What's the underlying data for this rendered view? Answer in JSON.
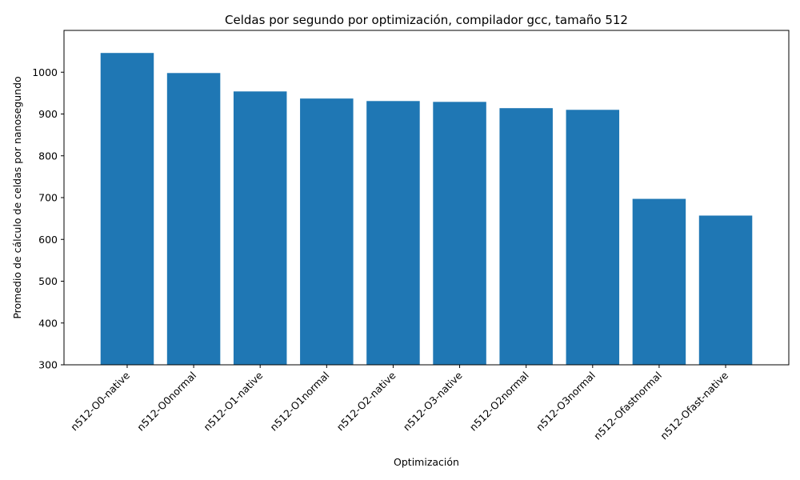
{
  "chart_data": {
    "type": "bar",
    "title": "Celdas por segundo por optimización, compilador gcc, tamaño 512",
    "xlabel": "Optimización",
    "ylabel": "Promedio de cálculo de celdas por nanosegundo",
    "categories": [
      "n512-O0-native",
      "n512-O0normal",
      "n512-O1-native",
      "n512-O1normal",
      "n512-O2-native",
      "n512-O3-native",
      "n512-O2normal",
      "n512-O3normal",
      "n512-Ofastnormal",
      "n512-Ofast-native"
    ],
    "values": [
      1046,
      998,
      954,
      937,
      931,
      929,
      914,
      910,
      697,
      657
    ],
    "ylim": [
      300,
      1100
    ],
    "yticks": [
      300,
      400,
      500,
      600,
      700,
      800,
      900,
      1000
    ],
    "bar_color": "#1f77b4",
    "grid": false,
    "legend": "none"
  }
}
